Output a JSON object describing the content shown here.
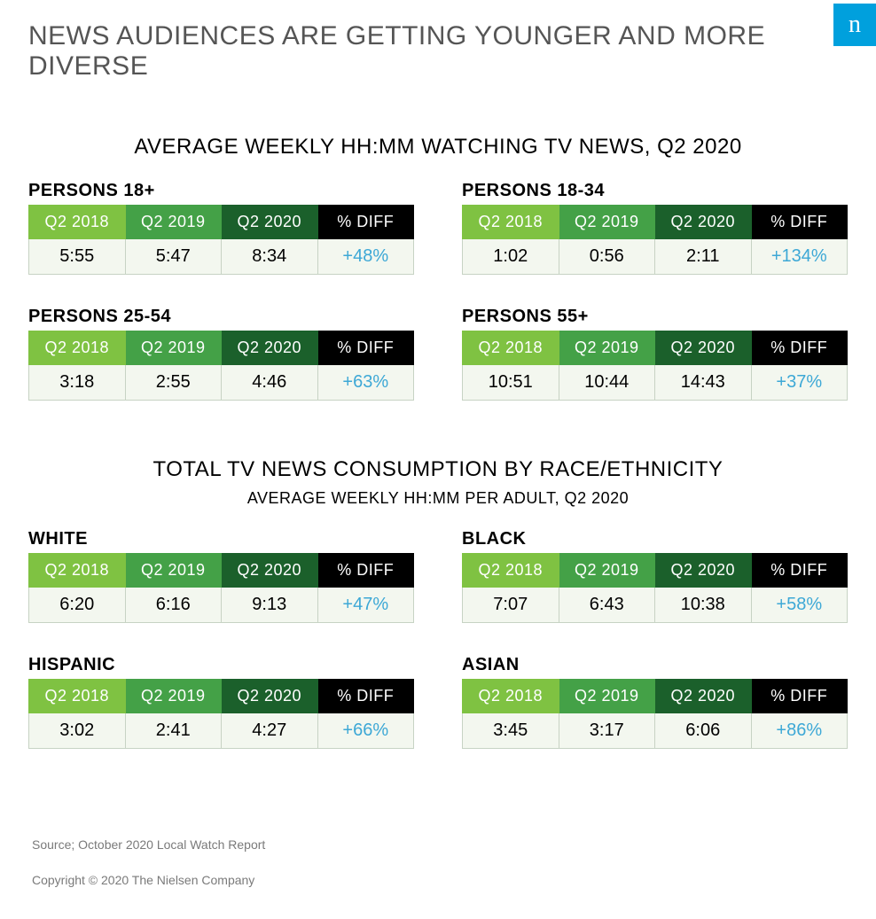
{
  "colors": {
    "title_gray": "#555555",
    "text_black": "#000000",
    "logo_bg": "#00a0dd",
    "logo_fg": "#ffffff",
    "diff_blue": "#3da8d6",
    "cell_border": "#c7d3c4",
    "data_bg": "#f3f7ef",
    "header_greens": [
      "#7fc242",
      "#44a147",
      "#1b602b",
      "#000000"
    ],
    "header_fg": "#ffffff",
    "footer_gray": "#7a7a7a"
  },
  "logo_text": "n",
  "main_title": {
    "text": "NEWS AUDIENCES ARE GETTING YOUNGER AND MORE DIVERSE",
    "fontsize": 30
  },
  "section1": {
    "title": "AVERAGE WEEKLY HH:MM WATCHING TV NEWS, Q2 2020",
    "title_fontsize": 24,
    "columns": [
      "Q2 2018",
      "Q2 2019",
      "Q2 2020",
      "% DIFF"
    ],
    "header_fontsize": 18,
    "data_fontsize": 20,
    "label_fontsize": 20,
    "panels": [
      {
        "label": "PERSONS 18+",
        "values": [
          "5:55",
          "5:47",
          "8:34"
        ],
        "diff": "+48%"
      },
      {
        "label": "PERSONS 18-34",
        "values": [
          "1:02",
          "0:56",
          "2:11"
        ],
        "diff": "+134%"
      },
      {
        "label": "PERSONS 25-54",
        "values": [
          "3:18",
          "2:55",
          "4:46"
        ],
        "diff": "+63%"
      },
      {
        "label": "PERSONS 55+",
        "values": [
          "10:51",
          "10:44",
          "14:43"
        ],
        "diff": "+37%"
      }
    ]
  },
  "section2": {
    "title": "TOTAL TV NEWS CONSUMPTION BY RACE/ETHNICITY",
    "title_fontsize": 24,
    "subtitle": "AVERAGE WEEKLY HH:MM PER ADULT, Q2 2020",
    "subtitle_fontsize": 18,
    "columns": [
      "Q2 2018",
      "Q2 2019",
      "Q2 2020",
      "% DIFF"
    ],
    "header_fontsize": 18,
    "data_fontsize": 20,
    "label_fontsize": 20,
    "panels": [
      {
        "label": "WHITE",
        "values": [
          "6:20",
          "6:16",
          "9:13"
        ],
        "diff": "+47%"
      },
      {
        "label": "BLACK",
        "values": [
          "7:07",
          "6:43",
          "10:38"
        ],
        "diff": "+58%"
      },
      {
        "label": "HISPANIC",
        "values": [
          "3:02",
          "2:41",
          "4:27"
        ],
        "diff": "+66%"
      },
      {
        "label": "ASIAN",
        "values": [
          "3:45",
          "3:17",
          "6:06"
        ],
        "diff": "+86%"
      }
    ]
  },
  "footer": {
    "source": "Source; October 2020 Local Watch Report",
    "copyright": "Copyright © 2020 The Nielsen Company",
    "fontsize": 14
  }
}
